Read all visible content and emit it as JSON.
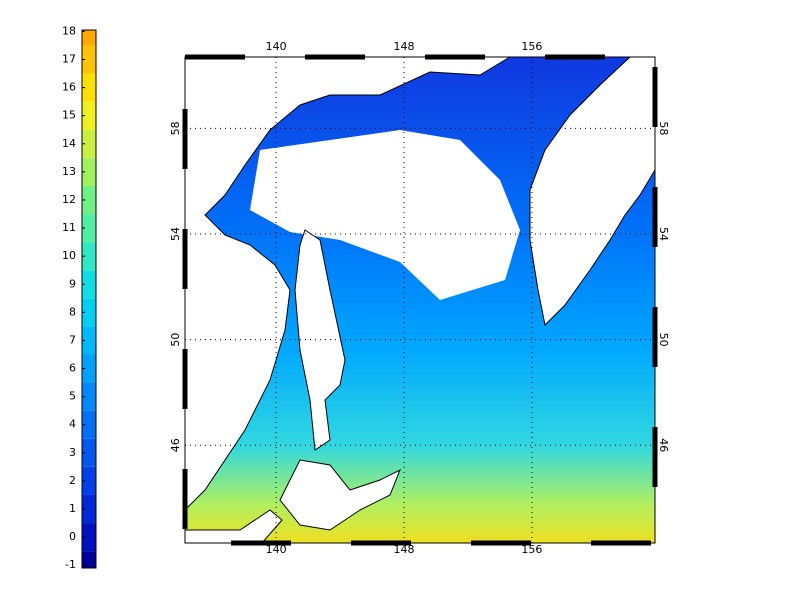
{
  "colorbar": {
    "ticks": [
      -1,
      0,
      1,
      2,
      3,
      4,
      5,
      6,
      7,
      8,
      9,
      10,
      11,
      12,
      13,
      14,
      15,
      16,
      17,
      18
    ],
    "range": [
      -1.1,
      18.05
    ],
    "colors": [
      "#00009a",
      "#0010c0",
      "#0028d8",
      "#0040e8",
      "#0058f0",
      "#0070f8",
      "#0088ff",
      "#00a0ff",
      "#00b8ff",
      "#00cff4",
      "#10dde4",
      "#30e8c4",
      "#50efa4",
      "#70f084",
      "#a0f060",
      "#c8f040",
      "#f0f020",
      "#ffe000",
      "#ffc400",
      "#ffa800"
    ]
  },
  "map": {
    "lon_ticks": [
      140,
      148,
      156
    ],
    "lat_ticks": [
      58,
      54,
      50,
      46
    ],
    "lon_range": [
      134.3,
      163.7
    ],
    "lat_range": [
      42.3,
      60.7
    ],
    "grid": true
  }
}
